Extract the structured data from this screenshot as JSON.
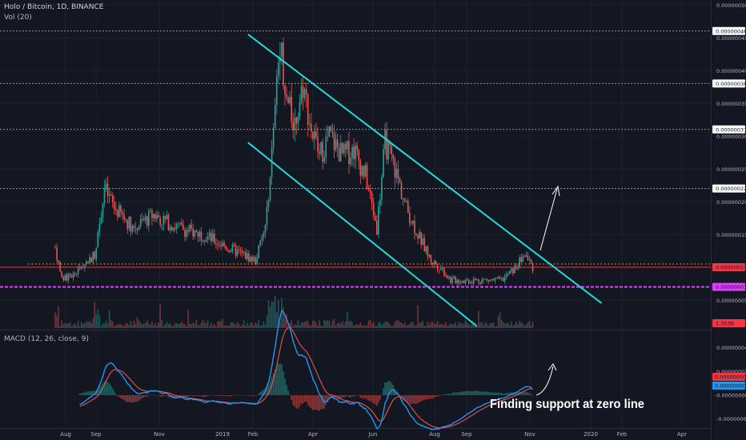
{
  "header": {
    "title": "Holo / Bitcoin, 1D, BINANCE",
    "volume_label": "Vol (20)",
    "macd_label": "MACD (12, 26, close, 9)"
  },
  "annotation": "Finding support at zero line",
  "colors": {
    "background": "#131722",
    "up": "#26a69a",
    "down": "#ef5350",
    "channel": "#25d9d9",
    "magenta": "#e040fb",
    "macd": "#2196f3",
    "signal": "#ef5350",
    "dotted_orange": "#f57c00",
    "current_red": "#f23645"
  },
  "chart_data": [
    {
      "type": "candlestick",
      "title": "Holo / Bitcoin, 1D, BINANCE",
      "x_ticks": [
        "Aug",
        "Sep",
        "Nov",
        "2019",
        "Feb",
        "Apr",
        "Jun",
        "Aug",
        "Sep",
        "Nov",
        "2020",
        "Feb",
        "Apr"
      ],
      "y_ticks": [
        "0.00000050",
        "0.00000045",
        "0.00000040",
        "0.00000035",
        "0.00000030",
        "0.00000025",
        "0.00000020",
        "0.00000015",
        "0.00000010",
        "0.00000005"
      ],
      "ylim": [
        1e-08,
        5.1e-07
      ],
      "price_lines": [
        {
          "label": "0.00000046",
          "value": 4.6e-07,
          "style": "dotted",
          "color": "#9598a1"
        },
        {
          "label": "0.00000038",
          "value": 3.8e-07,
          "style": "dotted",
          "color": "#9598a1"
        },
        {
          "label": "0.00000031",
          "value": 3.1e-07,
          "style": "dotted",
          "color": "#9598a1"
        },
        {
          "label": "0.00000022",
          "value": 2.2e-07,
          "style": "dotted",
          "color": "#9598a1"
        },
        {
          "label": "0.00000010",
          "value": 1e-07,
          "style": "solid",
          "color": "#f23645"
        },
        {
          "label": "0.00000007",
          "value": 7e-08,
          "style": "dashed",
          "color": "#e040fb"
        }
      ],
      "orange_dotted_level": 1.05e-07,
      "volume_badge": "1.353B",
      "series_keypoints": [
        {
          "t": 0,
          "v": 1.3e-07
        },
        {
          "t": 4,
          "v": 8e-08
        },
        {
          "t": 12,
          "v": 9e-08
        },
        {
          "t": 24,
          "v": 1.2e-07
        },
        {
          "t": 30,
          "v": 2.2e-07
        },
        {
          "t": 36,
          "v": 1.9e-07
        },
        {
          "t": 48,
          "v": 1.6e-07
        },
        {
          "t": 60,
          "v": 1.8e-07
        },
        {
          "t": 75,
          "v": 1.6e-07
        },
        {
          "t": 90,
          "v": 1.5e-07
        },
        {
          "t": 105,
          "v": 1.3e-07
        },
        {
          "t": 122,
          "v": 1.1e-07
        },
        {
          "t": 128,
          "v": 1.6e-07
        },
        {
          "t": 133,
          "v": 3e-07
        },
        {
          "t": 137,
          "v": 4.5e-07
        },
        {
          "t": 141,
          "v": 3.5e-07
        },
        {
          "t": 146,
          "v": 3.2e-07
        },
        {
          "t": 151,
          "v": 3.8e-07
        },
        {
          "t": 156,
          "v": 3.1e-07
        },
        {
          "t": 161,
          "v": 2.7e-07
        },
        {
          "t": 167,
          "v": 3e-07
        },
        {
          "t": 175,
          "v": 2.7e-07
        },
        {
          "t": 182,
          "v": 2.8e-07
        },
        {
          "t": 189,
          "v": 2.4e-07
        },
        {
          "t": 196,
          "v": 1.6e-07
        },
        {
          "t": 201,
          "v": 2.9e-07
        },
        {
          "t": 207,
          "v": 2.5e-07
        },
        {
          "t": 214,
          "v": 1.9e-07
        },
        {
          "t": 221,
          "v": 1.5e-07
        },
        {
          "t": 229,
          "v": 1.1e-07
        },
        {
          "t": 235,
          "v": 1e-07
        },
        {
          "t": 241,
          "v": 8e-08
        },
        {
          "t": 255,
          "v": 8e-08
        },
        {
          "t": 272,
          "v": 8e-08
        },
        {
          "t": 281,
          "v": 1e-07
        },
        {
          "t": 286,
          "v": 1.2e-07
        },
        {
          "t": 291,
          "v": 1e-07
        }
      ]
    },
    {
      "type": "line",
      "title": "MACD (12, 26, close, 9)",
      "y_ticks": [
        "0.00000004",
        "0.00000002",
        "-0.00000002"
      ],
      "badges": [
        "0.00000000",
        "0.00000000",
        "-0.00000000"
      ],
      "ylim": [
        -2.6e-08,
        5.5e-08
      ]
    }
  ]
}
